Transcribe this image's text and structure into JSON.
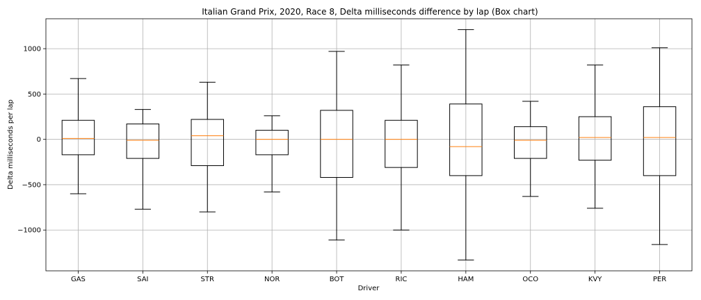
{
  "chart_data": {
    "type": "box",
    "title": "Italian Grand Prix, 2020, Race 8, Delta milliseconds difference by lap (Box chart)",
    "xlabel": "Driver",
    "ylabel": "Delta milliseconds per lap",
    "ylim": [
      -1450,
      1330
    ],
    "yticks": [
      -1000,
      -500,
      0,
      500,
      1000
    ],
    "ytick_labels": [
      "−1000",
      "−500",
      "0",
      "500",
      "1000"
    ],
    "grid": true,
    "colors": {
      "box": "#000000",
      "median": "#ff7f0e",
      "grid": "#b0b0b0"
    },
    "categories": [
      "GAS",
      "SAI",
      "STR",
      "NOR",
      "BOT",
      "RIC",
      "HAM",
      "OCO",
      "KVY",
      "PER"
    ],
    "boxes": [
      {
        "name": "GAS",
        "whisker_low": -600,
        "q1": -170,
        "median": 10,
        "q3": 210,
        "whisker_high": 670
      },
      {
        "name": "SAI",
        "whisker_low": -770,
        "q1": -210,
        "median": -10,
        "q3": 170,
        "whisker_high": 330
      },
      {
        "name": "STR",
        "whisker_low": -800,
        "q1": -290,
        "median": 40,
        "q3": 220,
        "whisker_high": 630
      },
      {
        "name": "NOR",
        "whisker_low": -580,
        "q1": -170,
        "median": 0,
        "q3": 100,
        "whisker_high": 260
      },
      {
        "name": "BOT",
        "whisker_low": -1110,
        "q1": -420,
        "median": 0,
        "q3": 320,
        "whisker_high": 970
      },
      {
        "name": "RIC",
        "whisker_low": -1000,
        "q1": -310,
        "median": 0,
        "q3": 210,
        "whisker_high": 820
      },
      {
        "name": "HAM",
        "whisker_low": -1330,
        "q1": -400,
        "median": -80,
        "q3": 390,
        "whisker_high": 1210
      },
      {
        "name": "OCO",
        "whisker_low": -630,
        "q1": -210,
        "median": -10,
        "q3": 140,
        "whisker_high": 420
      },
      {
        "name": "KVY",
        "whisker_low": -760,
        "q1": -230,
        "median": 20,
        "q3": 250,
        "whisker_high": 820
      },
      {
        "name": "PER",
        "whisker_low": -1160,
        "q1": -400,
        "median": 20,
        "q3": 360,
        "whisker_high": 1010
      }
    ]
  }
}
